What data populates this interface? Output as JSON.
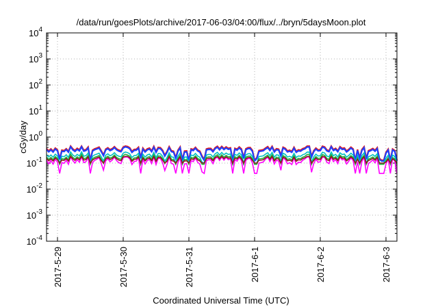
{
  "chart_data": {
    "type": "line",
    "title": "/data/run/goesPlots/archive/2017-06-03/04:00/flux/../bryn/5daysMoon.plot",
    "xlabel": "Coordinated Universal Time (UTC)",
    "ylabel": "cGy/day",
    "yscale": "log",
    "ylim": [
      0.0001,
      10000
    ],
    "y_ticks": [
      {
        "base": "10",
        "exp": "-4",
        "value": 0.0001
      },
      {
        "base": "10",
        "exp": "-3",
        "value": 0.001
      },
      {
        "base": "10",
        "exp": "-2",
        "value": 0.01
      },
      {
        "base": "10",
        "exp": "-1",
        "value": 0.1
      },
      {
        "base": "10",
        "exp": "0",
        "value": 1
      },
      {
        "base": "10",
        "exp": "1",
        "value": 10
      },
      {
        "base": "10",
        "exp": "2",
        "value": 100
      },
      {
        "base": "10",
        "exp": "3",
        "value": 1000
      },
      {
        "base": "10",
        "exp": "4",
        "value": 10000
      }
    ],
    "x_ticks": [
      "2017-5-29",
      "2017-5-30",
      "2017-5-31",
      "2017-6-1",
      "2017-6-2",
      "2017-6-3"
    ],
    "xlim": [
      "2017-05-28T20:00",
      "2017-06-03T04:00"
    ],
    "grid": true,
    "series": [
      {
        "color": "#e41a1c",
        "baseline": 0.36,
        "min": 0.13,
        "max": 0.45
      },
      {
        "color": "#1f3fff",
        "baseline": 0.33,
        "min": 0.12,
        "max": 0.42
      },
      {
        "color": "#00c0c0",
        "baseline": 0.21,
        "min": 0.1,
        "max": 0.28
      },
      {
        "color": "#1fae3a",
        "baseline": 0.17,
        "min": 0.09,
        "max": 0.22
      },
      {
        "color": "#ff00ff",
        "baseline": 0.13,
        "min": 0.04,
        "max": 0.17
      },
      {
        "color": "#8b1a1a",
        "baseline": 0.15,
        "min": 0.1,
        "max": 0.18
      }
    ]
  }
}
